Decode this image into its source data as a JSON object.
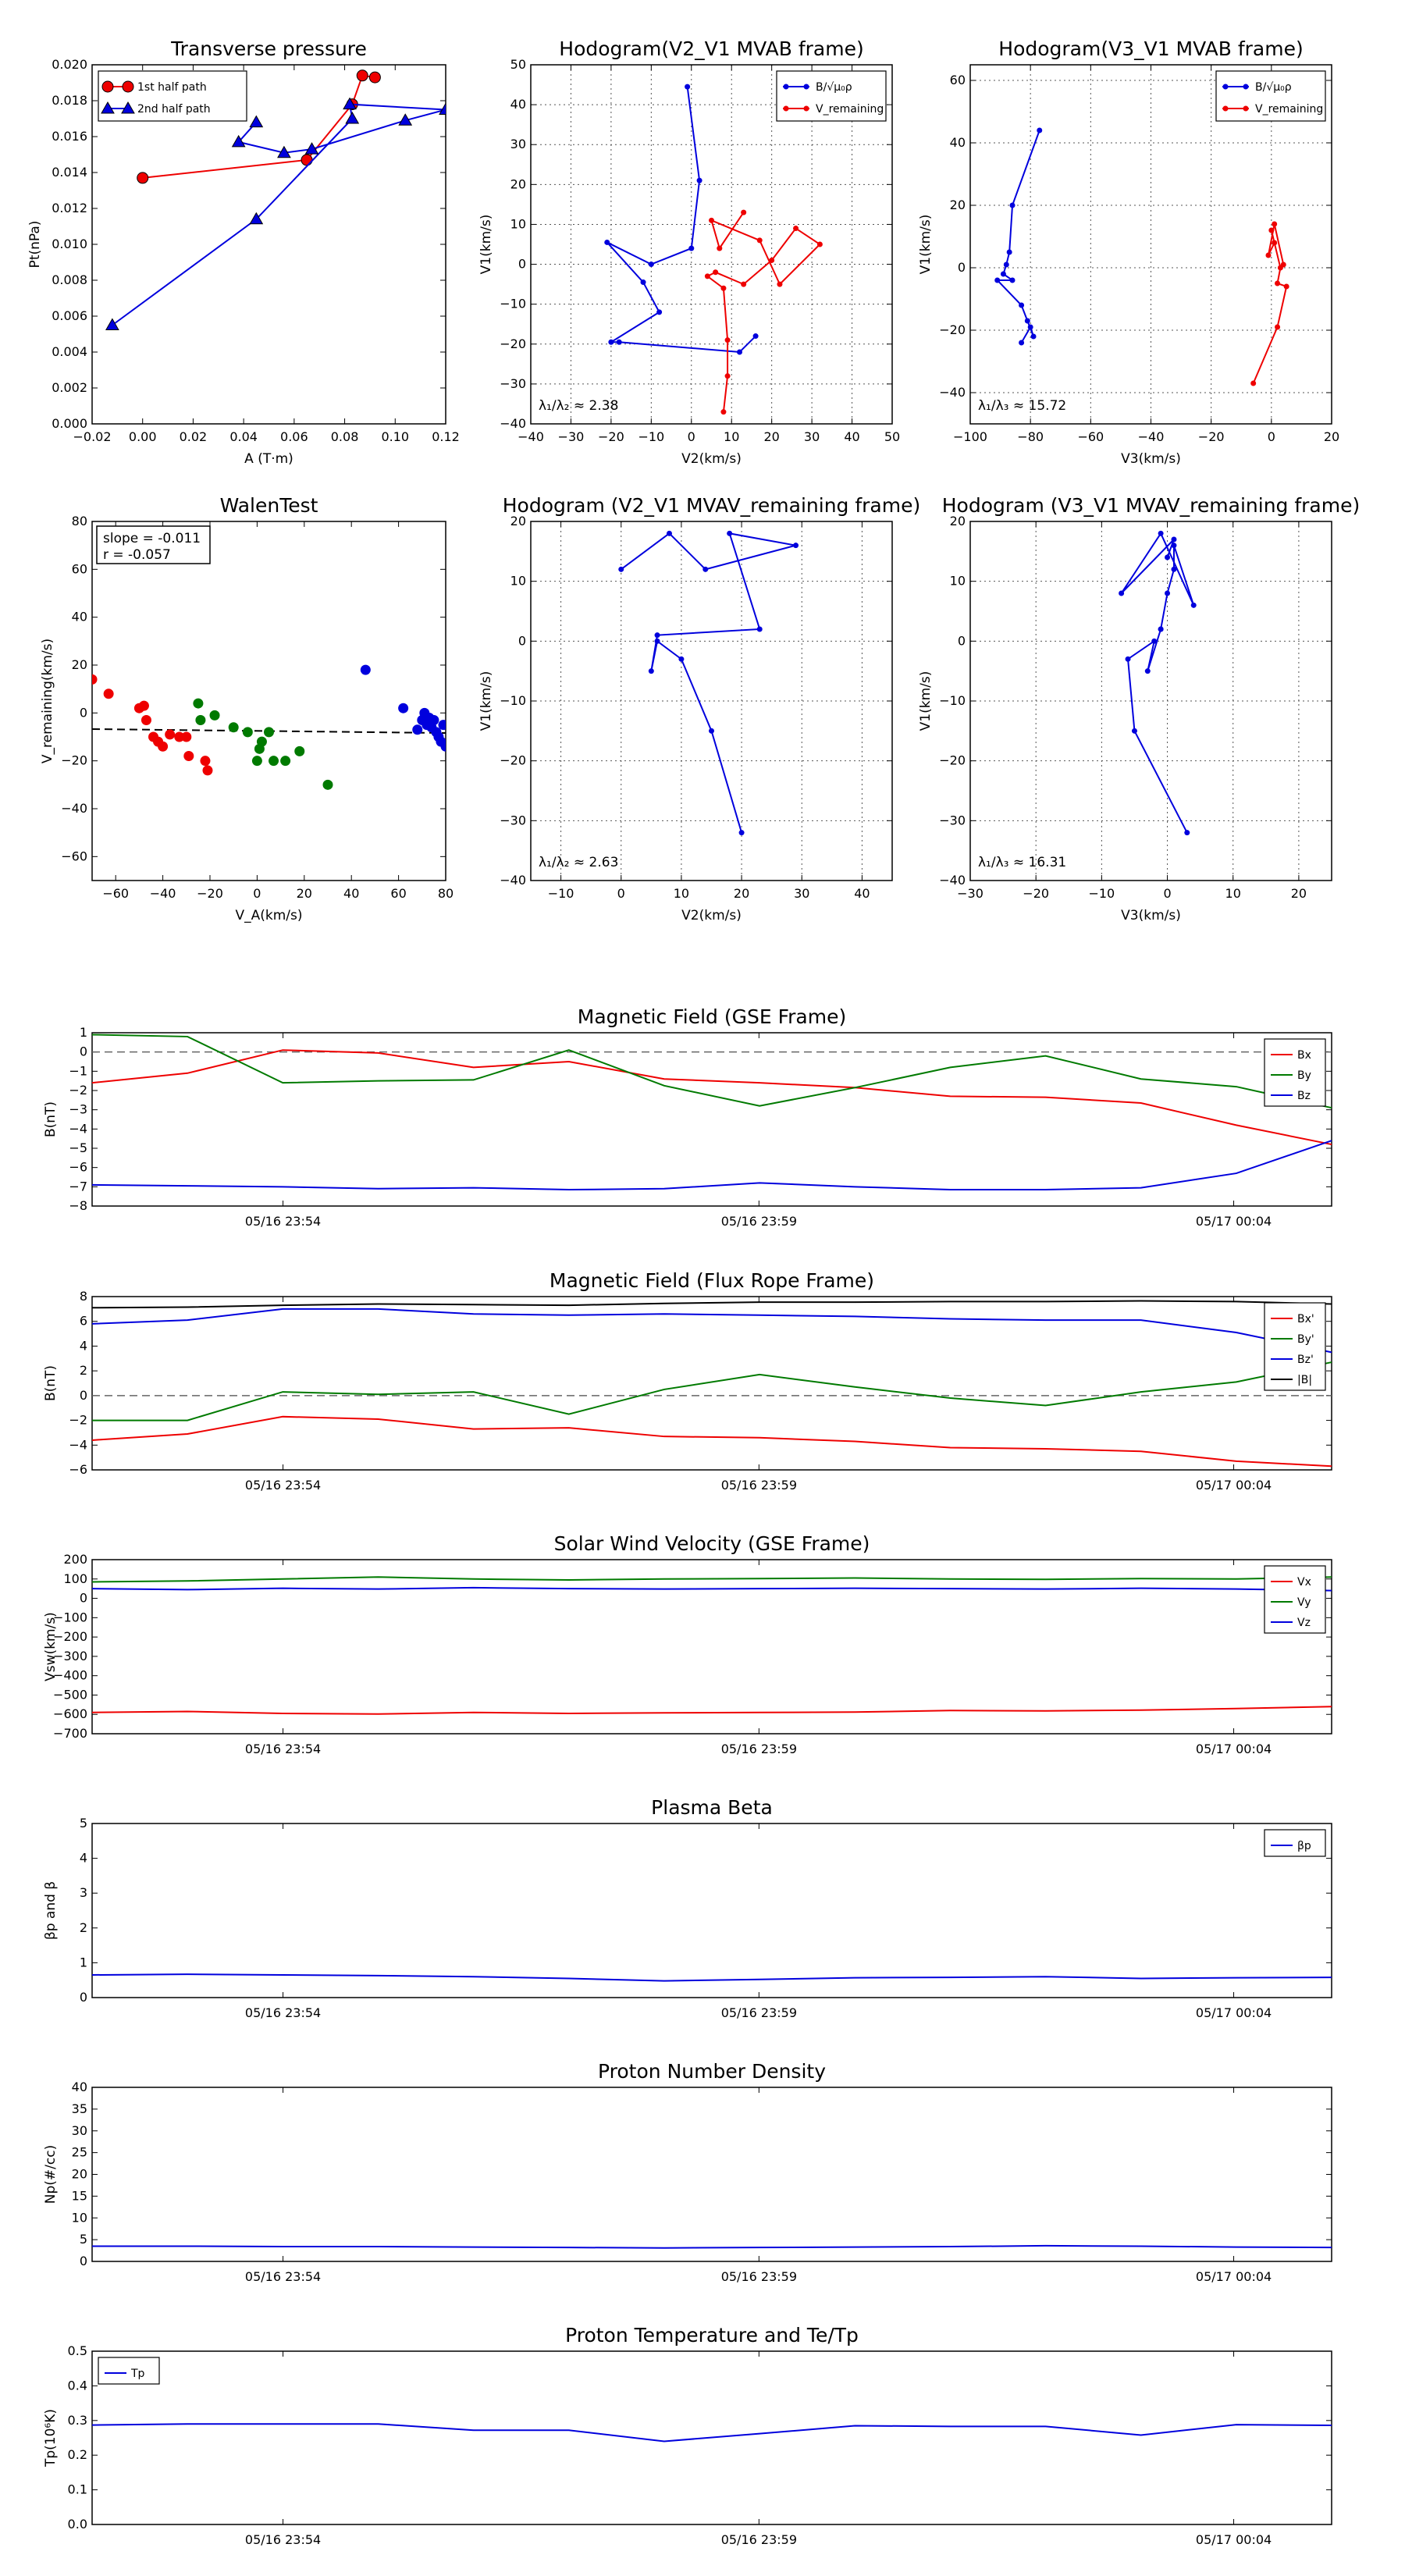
{
  "colors": {
    "red": "#ee0000",
    "green": "#007a00",
    "blue": "#0000dd",
    "black": "#000000",
    "grid": "#555555"
  },
  "time_ticks": [
    "05/16 23:54",
    "05/16 23:59",
    "05/17 00:04"
  ],
  "chart_data": [
    {
      "id": "pt",
      "type": "line",
      "title": "Transverse pressure",
      "xlabel": "A (T·m)",
      "ylabel": "Pt(nPa)",
      "xlim": [
        -0.02,
        0.12
      ],
      "ylim": [
        0,
        0.02
      ],
      "xticks": [
        -0.02,
        0,
        0.02,
        0.04,
        0.06,
        0.08,
        0.1,
        0.12
      ],
      "xtick_labels": [
        "−0.02",
        "0.00",
        "0.02",
        "0.04",
        "0.06",
        "0.08",
        "0.10",
        "0.12"
      ],
      "yticks": [
        0,
        0.002,
        0.004,
        0.006,
        0.008,
        0.01,
        0.012,
        0.014,
        0.016,
        0.018,
        0.02
      ],
      "ytick_labels": [
        "0.000",
        "0.002",
        "0.004",
        "0.006",
        "0.008",
        "0.010",
        "0.012",
        "0.014",
        "0.016",
        "0.018",
        "0.020"
      ],
      "grid": false,
      "legend": "top-left",
      "series": [
        {
          "name": "1st half path",
          "color": "#ee0000",
          "marker": "circle",
          "x": [
            0.0,
            0.065,
            0.083,
            0.087,
            0.092
          ],
          "y": [
            0.0137,
            0.0147,
            0.0178,
            0.0194,
            0.0193
          ]
        },
        {
          "name": "2nd half path",
          "color": "#0000dd",
          "marker": "triangle",
          "x": [
            -0.012,
            0.045,
            0.083,
            0.082,
            0.12,
            0.104,
            0.067,
            0.056,
            0.038,
            0.045
          ],
          "y": [
            0.0055,
            0.0114,
            0.017,
            0.0178,
            0.0175,
            0.0169,
            0.0153,
            0.0151,
            0.0157,
            0.0168
          ]
        }
      ]
    },
    {
      "id": "h1",
      "type": "line",
      "title": "Hodogram(V2_V1 MVAB frame)",
      "xlabel": "V2(km/s)",
      "ylabel": "V1(km/s)",
      "xlim": [
        -40,
        50
      ],
      "ylim": [
        -40,
        50
      ],
      "xticks": [
        -40,
        -30,
        -20,
        -10,
        0,
        10,
        20,
        30,
        40,
        50
      ],
      "yticks": [
        -40,
        -30,
        -20,
        -10,
        0,
        10,
        20,
        30,
        40,
        50
      ],
      "grid": true,
      "legend": "top-right",
      "annotation": "λ₁/λ₂ ≈ 2.38",
      "series": [
        {
          "name": "B/√μ₀ρ",
          "color": "#0000dd",
          "marker": "dot",
          "x": [
            -1,
            2,
            0,
            -10,
            -21,
            -12,
            -8,
            -20,
            -18,
            12,
            16
          ],
          "y": [
            44.5,
            21,
            4,
            0,
            5.5,
            -4.5,
            -12,
            -19.5,
            -19.5,
            -22,
            -18
          ]
        },
        {
          "name": "V_remaining",
          "color": "#ee0000",
          "marker": "dot",
          "x": [
            8,
            9,
            9,
            8,
            4,
            6,
            13,
            20,
            26,
            32,
            22,
            17,
            5,
            7,
            13
          ],
          "y": [
            -37,
            -28,
            -19,
            -6,
            -3,
            -2,
            -5,
            1,
            9,
            5,
            -5,
            6,
            11,
            4,
            13
          ]
        }
      ]
    },
    {
      "id": "h2",
      "type": "line",
      "title": "Hodogram(V3_V1 MVAB frame)",
      "xlabel": "V3(km/s)",
      "ylabel": "V1(km/s)",
      "xlim": [
        -100,
        20
      ],
      "ylim": [
        -50,
        65
      ],
      "xticks": [
        -100,
        -80,
        -60,
        -40,
        -20,
        0,
        20
      ],
      "yticks": [
        -40,
        -20,
        0,
        20,
        40,
        60
      ],
      "grid": true,
      "legend": "top-right",
      "annotation": "λ₁/λ₃ ≈ 15.72",
      "series": [
        {
          "name": "B/√μ₀ρ",
          "color": "#0000dd",
          "marker": "dot",
          "x": [
            -77,
            -86,
            -87,
            -88,
            -89,
            -86,
            -91,
            -83,
            -81,
            -79,
            -80,
            -83
          ],
          "y": [
            44,
            20,
            5,
            1,
            -2,
            -4,
            -4,
            -12,
            -17,
            -22,
            -19,
            -24
          ]
        },
        {
          "name": "V_remaining",
          "color": "#ee0000",
          "marker": "dot",
          "x": [
            -6,
            2,
            5,
            2,
            3,
            0,
            1,
            -1,
            1,
            4
          ],
          "y": [
            -37,
            -19,
            -6,
            -5,
            0,
            12,
            8,
            4,
            14,
            1
          ]
        }
      ]
    },
    {
      "id": "walen",
      "type": "scatter",
      "title": "WalenTest",
      "xlabel": "V_A(km/s)",
      "ylabel": "V_remaining(km/s)",
      "xlim": [
        -70,
        80
      ],
      "ylim": [
        -70,
        80
      ],
      "xticks": [
        -60,
        -40,
        -20,
        0,
        20,
        40,
        60,
        80
      ],
      "yticks": [
        -60,
        -40,
        -20,
        0,
        20,
        40,
        60,
        80
      ],
      "grid": false,
      "annotation": [
        "slope = -0.011",
        "r = -0.057"
      ],
      "fit": {
        "slope": -0.011,
        "intercept": -7.5
      },
      "series": [
        {
          "color": "#ee0000",
          "x": [
            -70,
            -63,
            -50,
            -48,
            -47,
            -44,
            -42,
            -40,
            -37,
            -33,
            -30,
            -29,
            -22,
            -21
          ],
          "y": [
            14,
            8,
            2,
            3,
            -3,
            -10,
            -12,
            -14,
            -9,
            -10,
            -10,
            -18,
            -20,
            -24
          ]
        },
        {
          "color": "#007a00",
          "x": [
            -25,
            -24,
            -18,
            -10,
            -4,
            0,
            1,
            2,
            5,
            7,
            12,
            18,
            30
          ],
          "y": [
            4,
            -3,
            -1,
            -6,
            -8,
            -20,
            -15,
            -12,
            -8,
            -20,
            -20,
            -16,
            -30
          ]
        },
        {
          "color": "#0000dd",
          "x": [
            46,
            62,
            68,
            70,
            71,
            72,
            73,
            74,
            75,
            76,
            77,
            78,
            79,
            80
          ],
          "y": [
            18,
            2,
            -7,
            -3,
            0,
            -5,
            -2,
            -6,
            -3,
            -8,
            -10,
            -12,
            -5,
            -14
          ]
        }
      ]
    },
    {
      "id": "h3",
      "type": "line",
      "title": "Hodogram (V2_V1 MVAV_remaining frame)",
      "xlabel": "V2(km/s)",
      "ylabel": "V1(km/s)",
      "xlim": [
        -15,
        45
      ],
      "ylim": [
        -40,
        20
      ],
      "xticks": [
        -10,
        0,
        10,
        20,
        30,
        40
      ],
      "yticks": [
        -40,
        -30,
        -20,
        -10,
        0,
        10,
        20
      ],
      "grid": true,
      "annotation": "λ₁/λ₂ ≈ 2.63",
      "series": [
        {
          "color": "#0000dd",
          "marker": "dot",
          "x": [
            20,
            15,
            10,
            6,
            5,
            6,
            23,
            18,
            29,
            14,
            8,
            0
          ],
          "y": [
            -32,
            -15,
            -3,
            0,
            -5,
            1,
            2,
            18,
            16,
            12,
            18,
            12
          ]
        }
      ]
    },
    {
      "id": "h4",
      "type": "line",
      "title": "Hodogram (V3_V1 MVAV_remaining frame)",
      "xlabel": "V3(km/s)",
      "ylabel": "V1(km/s)",
      "xlim": [
        -30,
        25
      ],
      "ylim": [
        -40,
        20
      ],
      "xticks": [
        -30,
        -20,
        -10,
        0,
        10,
        20
      ],
      "yticks": [
        -40,
        -30,
        -20,
        -10,
        0,
        10,
        20
      ],
      "grid": true,
      "annotation": "λ₁/λ₃ ≈ 16.31",
      "series": [
        {
          "color": "#0000dd",
          "marker": "dot",
          "x": [
            3,
            -5,
            -6,
            -2,
            -3,
            -1,
            -1,
            0,
            1,
            1,
            4,
            -1,
            -7,
            1,
            0
          ],
          "y": [
            -32,
            -15,
            -3,
            0,
            -5,
            2,
            2,
            8,
            12,
            16,
            6,
            18,
            8,
            17,
            14
          ]
        }
      ]
    },
    {
      "id": "mag_gse",
      "type": "line",
      "title": "Magnetic Field (GSE Frame)",
      "ylabel": "B(nT)",
      "ylim": [
        -8,
        1
      ],
      "yticks": [
        -8,
        -7,
        -6,
        -5,
        -4,
        -3,
        -2,
        -1,
        0,
        1
      ],
      "hline": 0,
      "legend": "top-right",
      "series": [
        {
          "name": "Bx",
          "color": "#ee0000",
          "y": [
            -1.6,
            -1.1,
            0.1,
            -0.05,
            -0.8,
            -0.5,
            -1.4,
            -1.6,
            -1.85,
            -2.3,
            -2.35,
            -2.65,
            -3.8,
            -4.8
          ]
        },
        {
          "name": "By",
          "color": "#007a00",
          "y": [
            0.9,
            0.8,
            -1.6,
            -1.5,
            -1.45,
            0.1,
            -1.75,
            -2.8,
            -1.85,
            -0.8,
            -0.2,
            -1.4,
            -1.8,
            -2.9
          ]
        },
        {
          "name": "Bz",
          "color": "#0000dd",
          "y": [
            -6.9,
            -6.95,
            -7.0,
            -7.1,
            -7.05,
            -7.15,
            -7.1,
            -6.8,
            -7.0,
            -7.15,
            -7.15,
            -7.05,
            -6.3,
            -4.6
          ]
        }
      ]
    },
    {
      "id": "mag_fr",
      "type": "line",
      "title": "Magnetic Field (Flux Rope Frame)",
      "ylabel": "B(nT)",
      "ylim": [
        -6,
        8
      ],
      "yticks": [
        -6,
        -4,
        -2,
        0,
        2,
        4,
        6,
        8
      ],
      "hline": 0,
      "legend": "top-right",
      "series": [
        {
          "name": "Bx'",
          "color": "#ee0000",
          "y": [
            -3.6,
            -3.1,
            -1.7,
            -1.9,
            -2.7,
            -2.6,
            -3.3,
            -3.4,
            -3.7,
            -4.2,
            -4.3,
            -4.5,
            -5.3,
            -5.7
          ]
        },
        {
          "name": "By'",
          "color": "#007a00",
          "y": [
            -2.0,
            -2.0,
            0.3,
            0.1,
            0.3,
            -1.5,
            0.5,
            1.7,
            0.7,
            -0.2,
            -0.8,
            0.3,
            1.1,
            2.7
          ]
        },
        {
          "name": "Bz'",
          "color": "#0000dd",
          "y": [
            5.8,
            6.1,
            7.0,
            7.0,
            6.6,
            6.5,
            6.6,
            6.5,
            6.4,
            6.2,
            6.1,
            6.1,
            5.1,
            3.5
          ]
        },
        {
          "name": "|B|",
          "color": "#000000",
          "y": [
            7.1,
            7.15,
            7.3,
            7.4,
            7.35,
            7.3,
            7.45,
            7.55,
            7.55,
            7.6,
            7.6,
            7.65,
            7.6,
            7.4
          ]
        }
      ]
    },
    {
      "id": "vsw",
      "type": "line",
      "title": "Solar Wind Velocity (GSE Frame)",
      "ylabel": "Vsw(km/s)",
      "ylim": [
        -700,
        200
      ],
      "yticks": [
        -700,
        -600,
        -500,
        -400,
        -300,
        -200,
        -100,
        0,
        100,
        200
      ],
      "legend": "top-right",
      "series": [
        {
          "name": "Vx",
          "color": "#ee0000",
          "y": [
            -590,
            -585,
            -595,
            -598,
            -590,
            -595,
            -592,
            -590,
            -588,
            -580,
            -582,
            -578,
            -570,
            -560
          ]
        },
        {
          "name": "Vy",
          "color": "#007a00",
          "y": [
            85,
            90,
            100,
            110,
            100,
            95,
            100,
            102,
            105,
            100,
            98,
            102,
            100,
            110
          ]
        },
        {
          "name": "Vz",
          "color": "#0000dd",
          "y": [
            50,
            45,
            52,
            48,
            55,
            50,
            48,
            50,
            52,
            50,
            48,
            52,
            48,
            40
          ]
        }
      ]
    },
    {
      "id": "beta",
      "type": "line",
      "title": "Plasma Beta",
      "ylabel": "βp and β",
      "ylim": [
        0,
        5
      ],
      "yticks": [
        0,
        1,
        2,
        3,
        4,
        5
      ],
      "legend": "top-right",
      "series": [
        {
          "name": "βp",
          "color": "#0000dd",
          "y": [
            0.65,
            0.67,
            0.65,
            0.63,
            0.6,
            0.55,
            0.48,
            0.52,
            0.57,
            0.58,
            0.6,
            0.55,
            0.57,
            0.58
          ]
        }
      ]
    },
    {
      "id": "np",
      "type": "line",
      "title": "Proton Number Density",
      "ylabel": "Np(#/cc)",
      "ylim": [
        0,
        40
      ],
      "yticks": [
        0,
        5,
        10,
        15,
        20,
        25,
        30,
        35,
        40
      ],
      "series": [
        {
          "color": "#0000dd",
          "y": [
            3.5,
            3.5,
            3.4,
            3.4,
            3.3,
            3.2,
            3.1,
            3.2,
            3.3,
            3.4,
            3.6,
            3.5,
            3.3,
            3.2
          ]
        }
      ]
    },
    {
      "id": "tp",
      "type": "line",
      "title": "Proton Temperature and Te/Tp",
      "ylabel": "Tp(10⁶K)",
      "ylim": [
        0,
        0.5
      ],
      "yticks": [
        0,
        0.1,
        0.2,
        0.3,
        0.4,
        0.5
      ],
      "ytick_labels": [
        "0.0",
        "0.1",
        "0.2",
        "0.3",
        "0.4",
        "0.5"
      ],
      "legend": "top-left",
      "series": [
        {
          "name": "Tp",
          "color": "#0000dd",
          "y": [
            0.287,
            0.29,
            0.29,
            0.29,
            0.272,
            0.272,
            0.24,
            0.262,
            0.285,
            0.283,
            0.283,
            0.258,
            0.288,
            0.286
          ]
        }
      ]
    }
  ]
}
